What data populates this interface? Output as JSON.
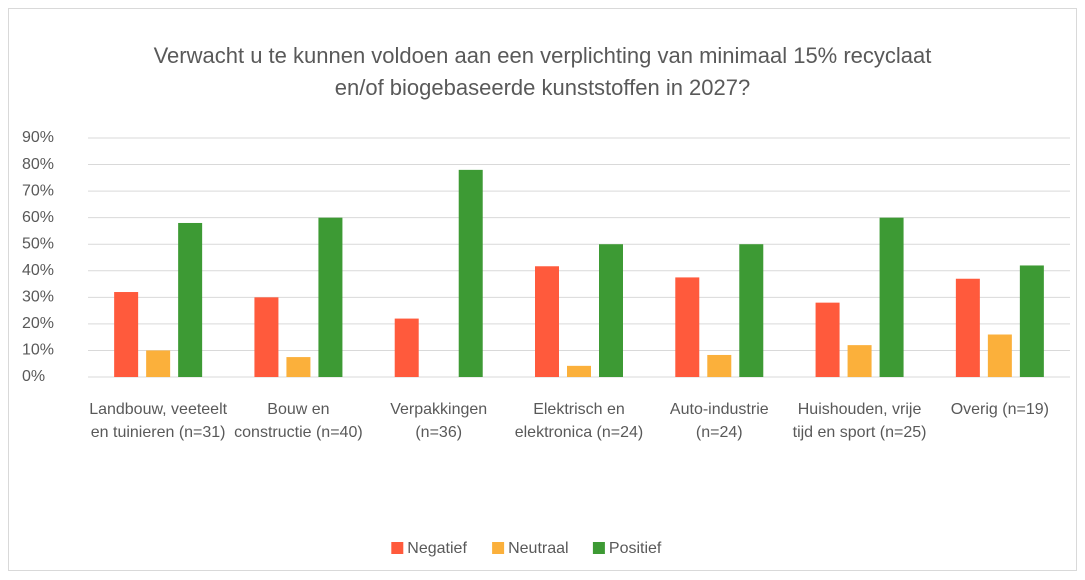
{
  "chart_data": {
    "type": "bar",
    "title": "Verwacht u te kunnen voldoen aan een verplichting van minimaal 15% recyclaat en/of biogebaseerde kunststoffen in 2027?",
    "categories": [
      "Landbouw, veeteelt en tuinieren (n=31)",
      "Bouw en constructie (n=40)",
      "Verpakkingen (n=36)",
      "Elektrisch en elektronica (n=24)",
      "Auto-industrie (n=24)",
      "Huishouden, vrije tijd en sport (n=25)",
      "Overig (n=19)"
    ],
    "series": [
      {
        "name": "Negatief",
        "color": "#ff5a3c",
        "values": [
          32,
          30,
          22,
          41.7,
          37.5,
          28,
          37
        ]
      },
      {
        "name": "Neutraal",
        "color": "#fbb03b",
        "values": [
          10,
          7.5,
          0,
          4.2,
          8.3,
          12,
          16
        ]
      },
      {
        "name": "Positief",
        "color": "#3d9a34",
        "values": [
          58,
          60,
          78,
          50,
          50,
          60,
          42
        ]
      }
    ],
    "ylim": [
      0,
      90
    ],
    "yticks": [
      {
        "value": 0,
        "label": "0%"
      },
      {
        "value": 10,
        "label": "10%"
      },
      {
        "value": 20,
        "label": "20%"
      },
      {
        "value": 30,
        "label": "30%"
      },
      {
        "value": 40,
        "label": "40%"
      },
      {
        "value": 50,
        "label": "50%"
      },
      {
        "value": 60,
        "label": "60%"
      },
      {
        "value": 70,
        "label": "70%"
      },
      {
        "value": 80,
        "label": "80%"
      },
      {
        "value": 90,
        "label": "90%"
      }
    ],
    "grid": true,
    "legend": "bottom"
  }
}
